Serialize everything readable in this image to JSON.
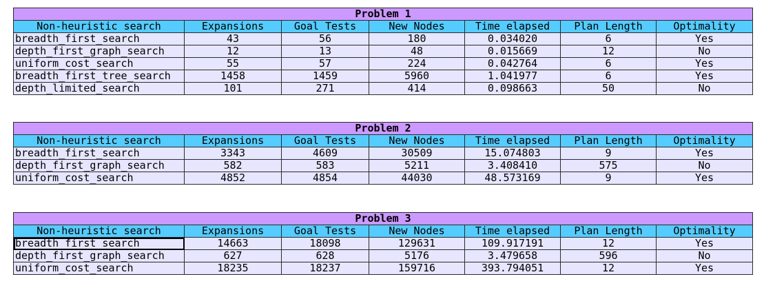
{
  "problems": [
    {
      "title": "Problem 1",
      "headers": [
        "Non-heuristic search",
        "Expansions",
        "Goal Tests",
        "New Nodes",
        "Time elapsed",
        "Plan Length",
        "Optimality"
      ],
      "rows": [
        [
          "breadth_first_search",
          "43",
          "56",
          "180",
          "0.034020",
          "6",
          "Yes"
        ],
        [
          "depth_first_graph_search",
          "12",
          "13",
          "48",
          "0.015669",
          "12",
          "No"
        ],
        [
          "uniform_cost_search",
          "55",
          "57",
          "224",
          "0.042764",
          "6",
          "Yes"
        ],
        [
          "breadth_first_tree_search",
          "1458",
          "1459",
          "5960",
          "1.041977",
          "6",
          "Yes"
        ],
        [
          "depth_limited_search",
          "101",
          "271",
          "414",
          "0.098663",
          "50",
          "No"
        ]
      ]
    },
    {
      "title": "Problem 2",
      "headers": [
        "Non-heuristic search",
        "Expansions",
        "Goal Tests",
        "New Nodes",
        "Time elapsed",
        "Plan Length",
        "Optimality"
      ],
      "rows": [
        [
          "breadth_first_search",
          "3343",
          "4609",
          "30509",
          "15.074803",
          "9",
          "Yes"
        ],
        [
          "depth_first_graph_search",
          "582",
          "583",
          "5211",
          "3.408410",
          "575",
          "No"
        ],
        [
          "uniform_cost_search",
          "4852",
          "4854",
          "44030",
          "48.573169",
          "9",
          "Yes"
        ]
      ]
    },
    {
      "title": "Problem 3",
      "headers": [
        "Non-heuristic search",
        "Expansions",
        "Goal Tests",
        "New Nodes",
        "Time elapsed",
        "Plan Length",
        "Optimality"
      ],
      "rows": [
        [
          "breadth_first_search",
          "14663",
          "18098",
          "129631",
          "109.917191",
          "12",
          "Yes"
        ],
        [
          "depth_first_graph_search",
          "627",
          "628",
          "5176",
          "3.479658",
          "596",
          "No"
        ],
        [
          "uniform_cost_search",
          "18235",
          "18237",
          "159716",
          "393.794051",
          "12",
          "Yes"
        ]
      ]
    }
  ]
}
